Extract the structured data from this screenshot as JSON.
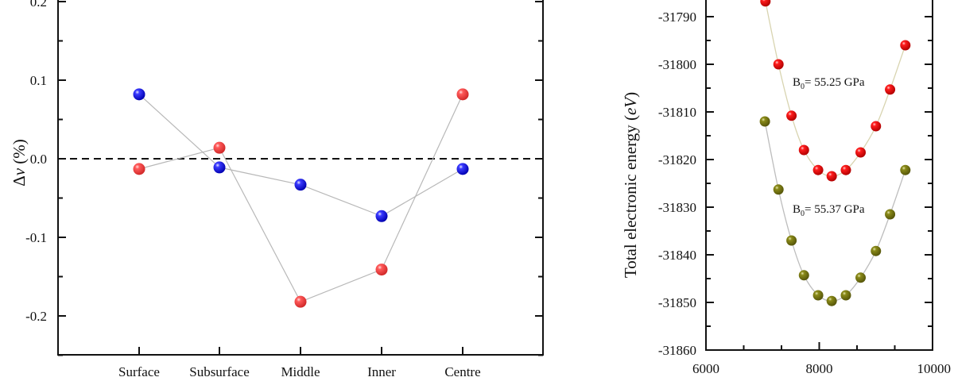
{
  "chart_data": [
    {
      "type": "scatter",
      "title": "",
      "xlabel": "",
      "ylabel": "Δv (%)",
      "ylabel_parts": {
        "symbol": "Δ",
        "italic": "v",
        "unit": " (%)"
      },
      "categories": [
        "Surface",
        "Subsurface",
        "Middle",
        "Inner",
        "Centre"
      ],
      "ylim": [
        -0.25,
        0.2
      ],
      "yticks": [
        0.2,
        0.1,
        0.0,
        -0.1,
        -0.2
      ],
      "ytick_labels": [
        "0.2",
        "0.1",
        "0.0",
        "-0.1",
        "-0.2"
      ],
      "reference_line": {
        "y": 0.0,
        "style": "dashed"
      },
      "series": [
        {
          "name": "blue",
          "color": "#1010e0",
          "values": [
            0.082,
            -0.011,
            -0.033,
            -0.073,
            -0.013
          ]
        },
        {
          "name": "red",
          "color": "#f04848",
          "values": [
            -0.013,
            0.014,
            -0.182,
            -0.141,
            0.082
          ]
        }
      ],
      "line_color": "#b8b8b8",
      "grid": false
    },
    {
      "type": "line",
      "title": "",
      "xlabel": "",
      "ylabel": "Total electronic energy (eV)",
      "ylabel_parts": {
        "text": "Total electronic energy ",
        "unit": "(eV)",
        "unit_open": "(",
        "unit_italic": "eV",
        "unit_close": ")"
      },
      "xlim": [
        6000,
        10000
      ],
      "ylim": [
        -31860,
        -31786.5
      ],
      "xticks": [
        6000,
        8000,
        10000
      ],
      "xtick_labels": [
        "6000",
        "8000",
        "10000"
      ],
      "yticks": [
        -31790,
        -31800,
        -31810,
        -31820,
        -31830,
        -31840,
        -31850,
        -31860
      ],
      "ytick_labels": [
        "-31790",
        "-31800",
        "-31810",
        "-31820",
        "-31830",
        "-31840",
        "-31850",
        "-31860"
      ],
      "grid": false,
      "series": [
        {
          "name": "red",
          "color": "#ee1111",
          "line_color": "#d8d4b0",
          "annotation": {
            "prefix": "B",
            "subscript": "0",
            "text": "= 55.25 GPa"
          },
          "x": [
            7050,
            7280,
            7510,
            7730,
            7980,
            8220,
            8470,
            8730,
            9000,
            9250,
            9520
          ],
          "y": [
            -31786.8,
            -31800,
            -31810.8,
            -31818,
            -31822.2,
            -31823.5,
            -31822.2,
            -31818.5,
            -31813,
            -31805.3,
            -31796
          ]
        },
        {
          "name": "olive",
          "color": "#7a7a10",
          "line_color": "#bdbdbd",
          "annotation": {
            "prefix": "B",
            "subscript": "0",
            "text": "= 55.37 GPa"
          },
          "x": [
            7040,
            7280,
            7510,
            7730,
            7980,
            8220,
            8470,
            8730,
            9000,
            9250,
            9520
          ],
          "y": [
            -31812,
            -31826.3,
            -31837,
            -31844.3,
            -31848.5,
            -31849.7,
            -31848.5,
            -31844.8,
            -31839.2,
            -31831.5,
            -31822.2
          ]
        }
      ]
    }
  ]
}
